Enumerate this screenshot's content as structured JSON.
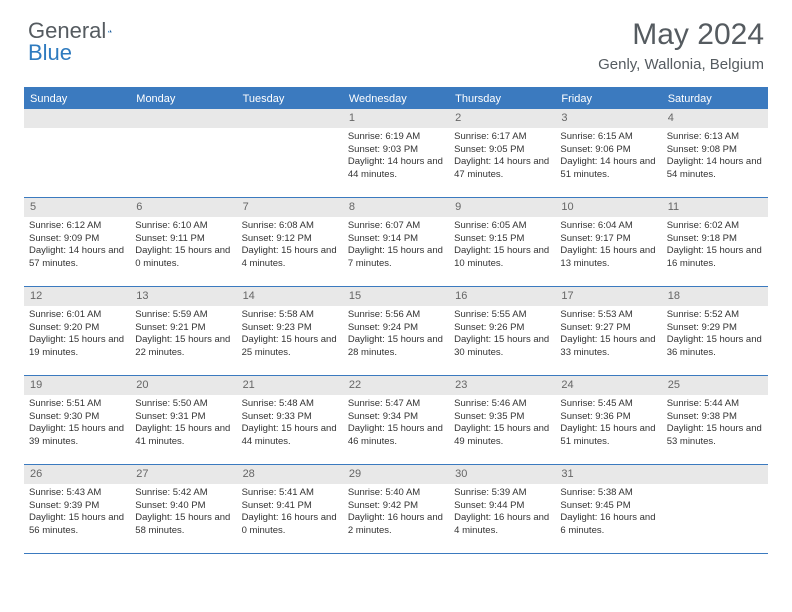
{
  "logo": {
    "part1": "General",
    "part2": "Blue"
  },
  "title": "May 2024",
  "location": "Genly, Wallonia, Belgium",
  "colors": {
    "accent": "#3b7abf",
    "header_text": "#ffffff",
    "daynum_bg": "#e8e8e8",
    "text": "#333333",
    "title_text": "#555b60"
  },
  "day_names": [
    "Sunday",
    "Monday",
    "Tuesday",
    "Wednesday",
    "Thursday",
    "Friday",
    "Saturday"
  ],
  "weeks": [
    [
      {
        "n": "",
        "lines": []
      },
      {
        "n": "",
        "lines": []
      },
      {
        "n": "",
        "lines": []
      },
      {
        "n": "1",
        "lines": [
          "Sunrise: 6:19 AM",
          "Sunset: 9:03 PM",
          "Daylight: 14 hours and 44 minutes."
        ]
      },
      {
        "n": "2",
        "lines": [
          "Sunrise: 6:17 AM",
          "Sunset: 9:05 PM",
          "Daylight: 14 hours and 47 minutes."
        ]
      },
      {
        "n": "3",
        "lines": [
          "Sunrise: 6:15 AM",
          "Sunset: 9:06 PM",
          "Daylight: 14 hours and 51 minutes."
        ]
      },
      {
        "n": "4",
        "lines": [
          "Sunrise: 6:13 AM",
          "Sunset: 9:08 PM",
          "Daylight: 14 hours and 54 minutes."
        ]
      }
    ],
    [
      {
        "n": "5",
        "lines": [
          "Sunrise: 6:12 AM",
          "Sunset: 9:09 PM",
          "Daylight: 14 hours and 57 minutes."
        ]
      },
      {
        "n": "6",
        "lines": [
          "Sunrise: 6:10 AM",
          "Sunset: 9:11 PM",
          "Daylight: 15 hours and 0 minutes."
        ]
      },
      {
        "n": "7",
        "lines": [
          "Sunrise: 6:08 AM",
          "Sunset: 9:12 PM",
          "Daylight: 15 hours and 4 minutes."
        ]
      },
      {
        "n": "8",
        "lines": [
          "Sunrise: 6:07 AM",
          "Sunset: 9:14 PM",
          "Daylight: 15 hours and 7 minutes."
        ]
      },
      {
        "n": "9",
        "lines": [
          "Sunrise: 6:05 AM",
          "Sunset: 9:15 PM",
          "Daylight: 15 hours and 10 minutes."
        ]
      },
      {
        "n": "10",
        "lines": [
          "Sunrise: 6:04 AM",
          "Sunset: 9:17 PM",
          "Daylight: 15 hours and 13 minutes."
        ]
      },
      {
        "n": "11",
        "lines": [
          "Sunrise: 6:02 AM",
          "Sunset: 9:18 PM",
          "Daylight: 15 hours and 16 minutes."
        ]
      }
    ],
    [
      {
        "n": "12",
        "lines": [
          "Sunrise: 6:01 AM",
          "Sunset: 9:20 PM",
          "Daylight: 15 hours and 19 minutes."
        ]
      },
      {
        "n": "13",
        "lines": [
          "Sunrise: 5:59 AM",
          "Sunset: 9:21 PM",
          "Daylight: 15 hours and 22 minutes."
        ]
      },
      {
        "n": "14",
        "lines": [
          "Sunrise: 5:58 AM",
          "Sunset: 9:23 PM",
          "Daylight: 15 hours and 25 minutes."
        ]
      },
      {
        "n": "15",
        "lines": [
          "Sunrise: 5:56 AM",
          "Sunset: 9:24 PM",
          "Daylight: 15 hours and 28 minutes."
        ]
      },
      {
        "n": "16",
        "lines": [
          "Sunrise: 5:55 AM",
          "Sunset: 9:26 PM",
          "Daylight: 15 hours and 30 minutes."
        ]
      },
      {
        "n": "17",
        "lines": [
          "Sunrise: 5:53 AM",
          "Sunset: 9:27 PM",
          "Daylight: 15 hours and 33 minutes."
        ]
      },
      {
        "n": "18",
        "lines": [
          "Sunrise: 5:52 AM",
          "Sunset: 9:29 PM",
          "Daylight: 15 hours and 36 minutes."
        ]
      }
    ],
    [
      {
        "n": "19",
        "lines": [
          "Sunrise: 5:51 AM",
          "Sunset: 9:30 PM",
          "Daylight: 15 hours and 39 minutes."
        ]
      },
      {
        "n": "20",
        "lines": [
          "Sunrise: 5:50 AM",
          "Sunset: 9:31 PM",
          "Daylight: 15 hours and 41 minutes."
        ]
      },
      {
        "n": "21",
        "lines": [
          "Sunrise: 5:48 AM",
          "Sunset: 9:33 PM",
          "Daylight: 15 hours and 44 minutes."
        ]
      },
      {
        "n": "22",
        "lines": [
          "Sunrise: 5:47 AM",
          "Sunset: 9:34 PM",
          "Daylight: 15 hours and 46 minutes."
        ]
      },
      {
        "n": "23",
        "lines": [
          "Sunrise: 5:46 AM",
          "Sunset: 9:35 PM",
          "Daylight: 15 hours and 49 minutes."
        ]
      },
      {
        "n": "24",
        "lines": [
          "Sunrise: 5:45 AM",
          "Sunset: 9:36 PM",
          "Daylight: 15 hours and 51 minutes."
        ]
      },
      {
        "n": "25",
        "lines": [
          "Sunrise: 5:44 AM",
          "Sunset: 9:38 PM",
          "Daylight: 15 hours and 53 minutes."
        ]
      }
    ],
    [
      {
        "n": "26",
        "lines": [
          "Sunrise: 5:43 AM",
          "Sunset: 9:39 PM",
          "Daylight: 15 hours and 56 minutes."
        ]
      },
      {
        "n": "27",
        "lines": [
          "Sunrise: 5:42 AM",
          "Sunset: 9:40 PM",
          "Daylight: 15 hours and 58 minutes."
        ]
      },
      {
        "n": "28",
        "lines": [
          "Sunrise: 5:41 AM",
          "Sunset: 9:41 PM",
          "Daylight: 16 hours and 0 minutes."
        ]
      },
      {
        "n": "29",
        "lines": [
          "Sunrise: 5:40 AM",
          "Sunset: 9:42 PM",
          "Daylight: 16 hours and 2 minutes."
        ]
      },
      {
        "n": "30",
        "lines": [
          "Sunrise: 5:39 AM",
          "Sunset: 9:44 PM",
          "Daylight: 16 hours and 4 minutes."
        ]
      },
      {
        "n": "31",
        "lines": [
          "Sunrise: 5:38 AM",
          "Sunset: 9:45 PM",
          "Daylight: 16 hours and 6 minutes."
        ]
      },
      {
        "n": "",
        "lines": []
      }
    ]
  ]
}
